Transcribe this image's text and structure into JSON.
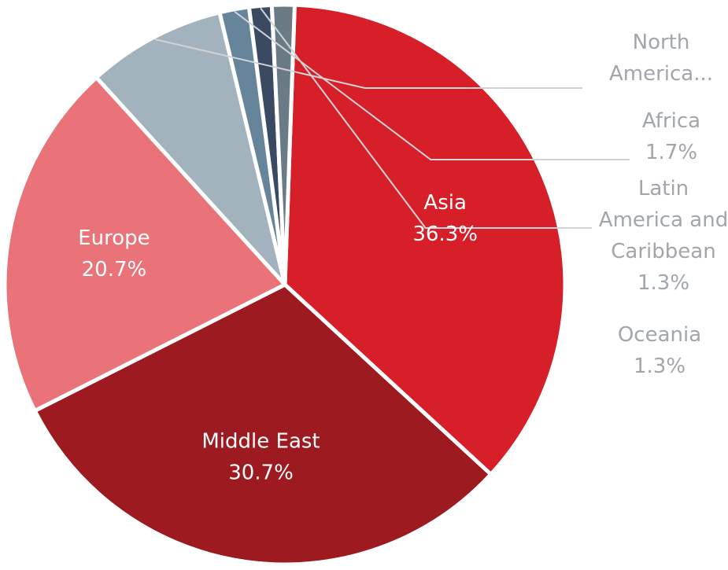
{
  "chart_data": {
    "type": "pie",
    "start_angle_deg": 272,
    "direction": "clockwise",
    "slices": [
      {
        "label_lines": [
          "Asia"
        ],
        "value": 36.3,
        "pct_label": "36.3%",
        "color": "#d61f28",
        "label_style": "inside"
      },
      {
        "label_lines": [
          "Middle East"
        ],
        "value": 30.7,
        "pct_label": "30.7%",
        "color": "#9d1b20",
        "label_style": "inside"
      },
      {
        "label_lines": [
          "Europe"
        ],
        "value": 20.7,
        "pct_label": "20.7%",
        "color": "#e97379",
        "label_style": "inside"
      },
      {
        "label_lines": [
          "North",
          "America..."
        ],
        "value": 8.0,
        "pct_label": "",
        "color": "#a2b3bd",
        "label_style": "outside"
      },
      {
        "label_lines": [
          "Africa"
        ],
        "value": 1.7,
        "pct_label": "1.7%",
        "color": "#66849a",
        "label_style": "outside"
      },
      {
        "label_lines": [
          "Latin",
          "America and",
          "Caribbean"
        ],
        "value": 1.3,
        "pct_label": "1.3%",
        "color": "#3a4a63",
        "label_style": "outside"
      },
      {
        "label_lines": [
          "Oceania"
        ],
        "value": 1.3,
        "pct_label": "1.3%",
        "color": "#6b7b86",
        "label_style": "outside"
      }
    ]
  }
}
